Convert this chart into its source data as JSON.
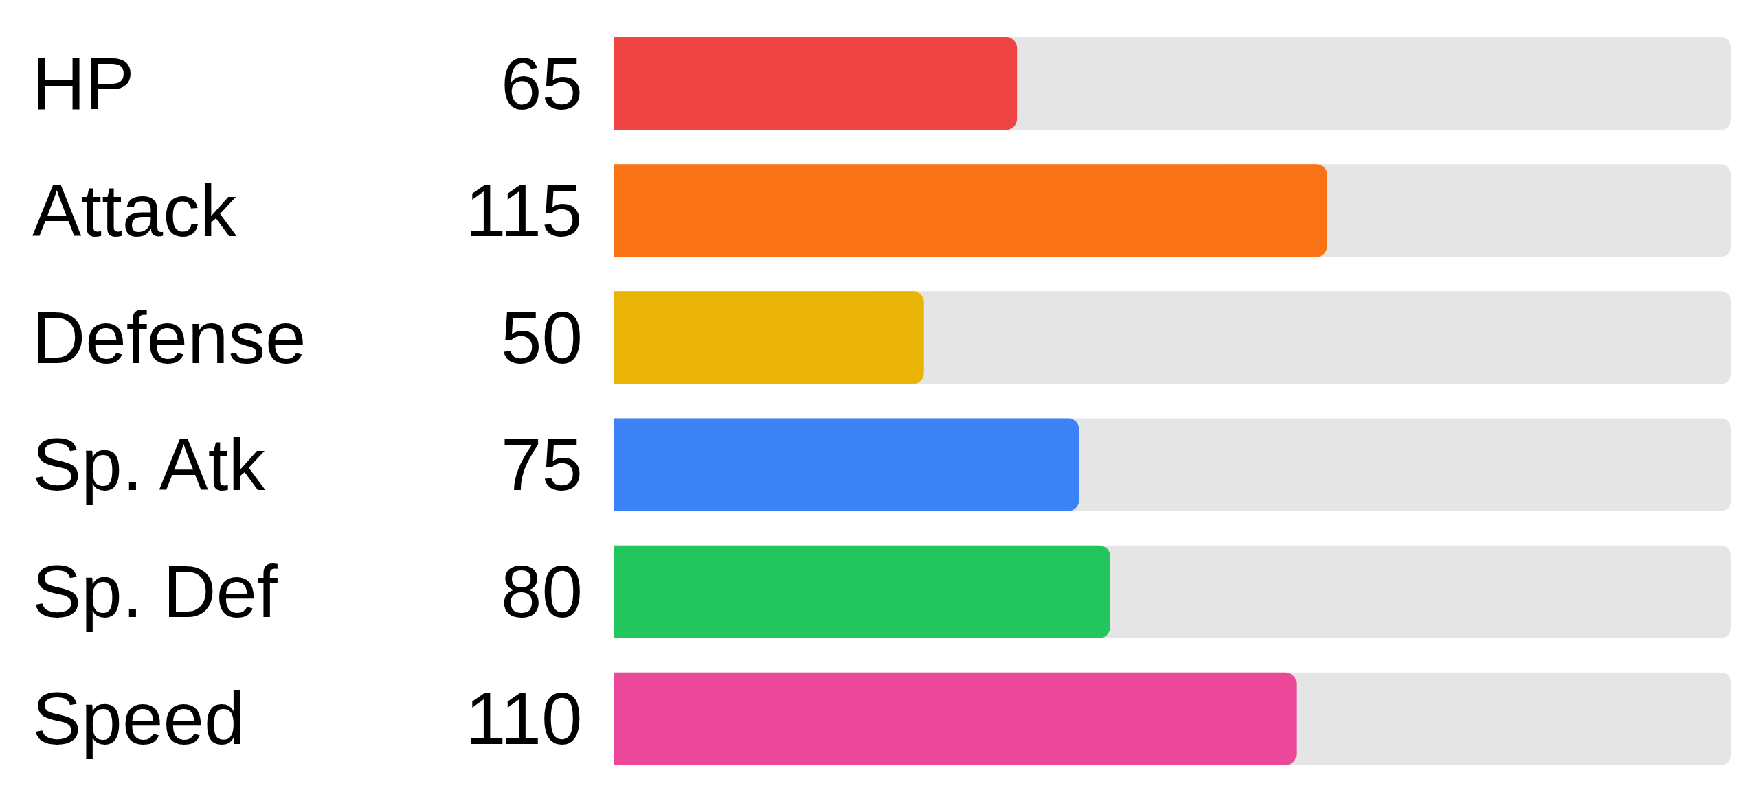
{
  "chart_data": {
    "type": "bar",
    "orientation": "horizontal",
    "categories": [
      "HP",
      "Attack",
      "Defense",
      "Sp. Atk",
      "Sp. Def",
      "Speed"
    ],
    "values": [
      65,
      115,
      50,
      75,
      80,
      110
    ],
    "colors": [
      "#ef4444",
      "#f97316",
      "#eab308",
      "#3b82f6",
      "#22c55e",
      "#ec4899"
    ],
    "xlim": [
      0,
      180
    ],
    "data_labels": true,
    "tick_labels": "y",
    "grid": false
  }
}
